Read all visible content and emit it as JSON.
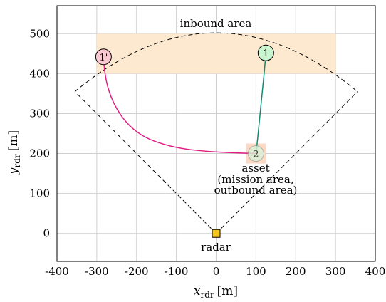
{
  "chart_data": {
    "type": "scatter",
    "title": "",
    "xlabel": "x_rdr [m]",
    "ylabel": "y_rdr [m]",
    "xlim": [
      -400,
      400
    ],
    "ylim": [
      -70,
      570
    ],
    "xticks": [
      -400,
      -300,
      -200,
      -100,
      0,
      100,
      200,
      300,
      400
    ],
    "yticks": [
      0,
      100,
      200,
      300,
      400,
      500
    ],
    "grid": true,
    "regions": [
      {
        "name": "inbound area",
        "x0": -300,
        "x1": 300,
        "y0": 400,
        "y1": 500,
        "color": "#fde9d0"
      },
      {
        "name": "asset",
        "x0": 75,
        "x1": 125,
        "y0": 175,
        "y1": 225,
        "color": "#fbd9c5"
      }
    ],
    "radar_coverage": {
      "apex": [
        0,
        0
      ],
      "left_end": [
        -355,
        355
      ],
      "right_end": [
        355,
        355
      ],
      "arc_top": [
        0,
        502
      ],
      "style": "dashed"
    },
    "series": [
      {
        "name": "1",
        "color": "#138a72",
        "fill": "#c9f5cf",
        "start": [
          125,
          452
        ],
        "end": [
          100,
          200
        ],
        "x": [
          125,
          122,
          118,
          114,
          110,
          106,
          103,
          100
        ],
        "y": [
          452,
          415,
          375,
          335,
          295,
          255,
          225,
          200
        ]
      },
      {
        "name": "1'",
        "color": "#e01e84",
        "fill": "#f9c8d0",
        "start": [
          -283,
          442
        ],
        "end": [
          100,
          200
        ],
        "x": [
          -283,
          -280,
          -270,
          -250,
          -220,
          -180,
          -130,
          -80,
          -20,
          40,
          100
        ],
        "y": [
          442,
          400,
          355,
          310,
          270,
          240,
          222,
          211,
          205,
          202,
          200
        ]
      }
    ],
    "points": [
      {
        "name": "radar",
        "x": 0,
        "y": 0,
        "color": "#f5c518"
      },
      {
        "name": "2",
        "x": 100,
        "y": 200,
        "color": "#d9f0d6"
      }
    ],
    "annotations": {
      "inbound": "inbound area",
      "asset": [
        "asset",
        "(mission area,",
        "outbound area)"
      ],
      "radar": "radar"
    }
  },
  "axes": {
    "xlabel_main": "x",
    "xlabel_sub": "rdr",
    "xlabel_unit": "[m]",
    "ylabel_main": "y",
    "ylabel_sub": "rdr",
    "ylabel_unit": "[m]"
  }
}
